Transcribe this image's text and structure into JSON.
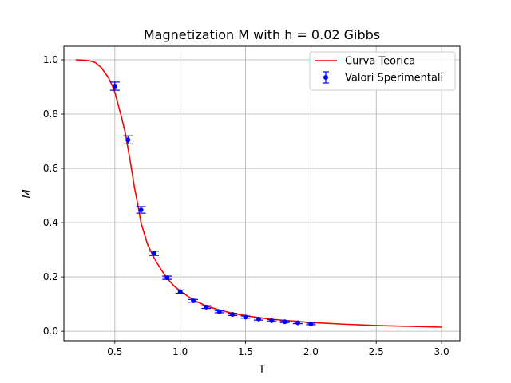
{
  "chart_data": {
    "type": "scatter",
    "title": "Magnetization M with h = 0.02 Gibbs",
    "xlabel": "T",
    "ylabel": "M",
    "xlim": [
      0.11,
      3.14
    ],
    "ylim": [
      -0.035,
      1.05
    ],
    "x_ticks": [
      0.5,
      1.0,
      1.5,
      2.0,
      2.5,
      3.0
    ],
    "x_tick_labels": [
      "0.5",
      "1.0",
      "1.5",
      "2.0",
      "2.5",
      "3.0"
    ],
    "y_ticks": [
      0.0,
      0.2,
      0.4,
      0.6,
      0.8,
      1.0
    ],
    "y_tick_labels": [
      "0.0",
      "0.2",
      "0.4",
      "0.6",
      "0.8",
      "1.0"
    ],
    "grid": true,
    "legend_position": "top-right",
    "series": [
      {
        "name": "Curva Teorica",
        "kind": "line",
        "color": "#ff0000",
        "x": [
          0.2,
          0.25,
          0.3,
          0.35,
          0.4,
          0.42,
          0.45,
          0.48,
          0.5,
          0.52,
          0.55,
          0.58,
          0.6,
          0.62,
          0.65,
          0.68,
          0.7,
          0.75,
          0.8,
          0.85,
          0.9,
          0.95,
          1.0,
          1.1,
          1.2,
          1.3,
          1.4,
          1.5,
          1.6,
          1.7,
          1.8,
          1.9,
          2.0,
          2.25,
          2.5,
          2.75,
          3.0
        ],
        "y": [
          1.0,
          0.999,
          0.997,
          0.99,
          0.97,
          0.955,
          0.935,
          0.905,
          0.88,
          0.845,
          0.79,
          0.73,
          0.675,
          0.62,
          0.53,
          0.455,
          0.4,
          0.32,
          0.27,
          0.23,
          0.195,
          0.168,
          0.148,
          0.115,
          0.093,
          0.078,
          0.066,
          0.057,
          0.05,
          0.044,
          0.04,
          0.036,
          0.032,
          0.026,
          0.021,
          0.018,
          0.015
        ]
      },
      {
        "name": "Valori Sperimentali",
        "kind": "errorbar",
        "color": "#0000ff",
        "x": [
          0.5,
          0.6,
          0.7,
          0.8,
          0.9,
          1.0,
          1.1,
          1.2,
          1.3,
          1.4,
          1.5,
          1.6,
          1.7,
          1.8,
          1.9,
          2.0
        ],
        "y": [
          0.903,
          0.705,
          0.447,
          0.287,
          0.197,
          0.146,
          0.112,
          0.089,
          0.072,
          0.062,
          0.052,
          0.045,
          0.039,
          0.035,
          0.031,
          0.027
        ],
        "yerr": [
          0.015,
          0.015,
          0.012,
          0.008,
          0.006,
          0.006,
          0.005,
          0.005,
          0.004,
          0.004,
          0.004,
          0.004,
          0.003,
          0.003,
          0.003,
          0.003
        ]
      }
    ]
  }
}
